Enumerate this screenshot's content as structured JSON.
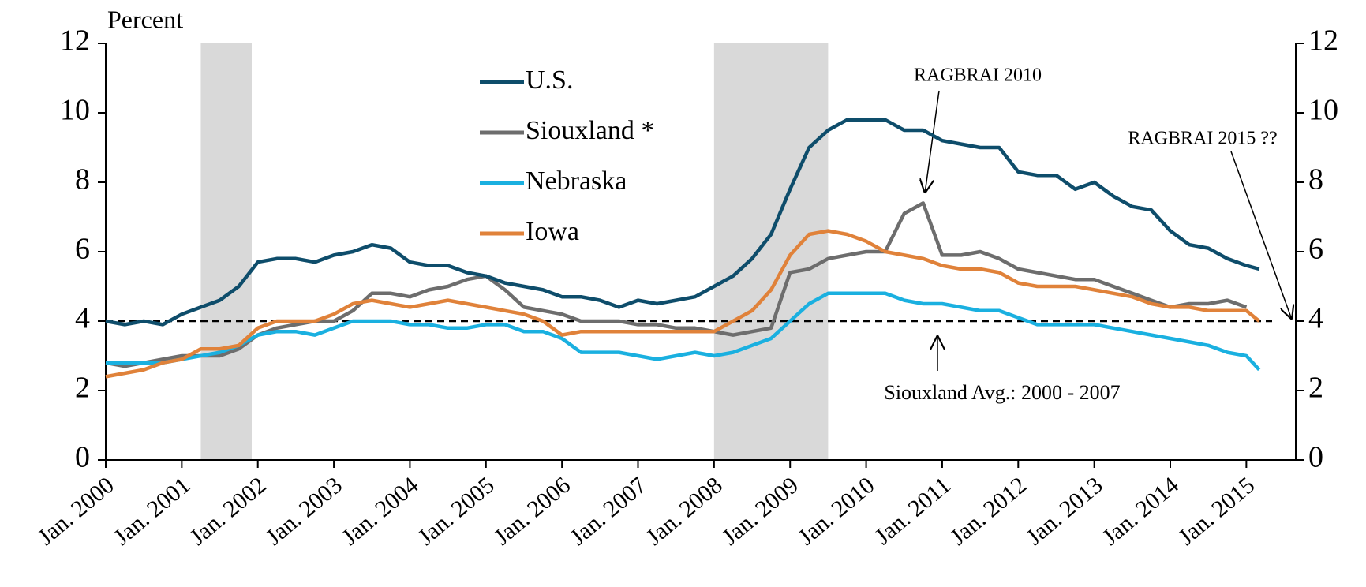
{
  "chart_data": {
    "type": "line",
    "title": "Percent",
    "x": [
      2000,
      2000.25,
      2000.5,
      2000.75,
      2001,
      2001.25,
      2001.5,
      2001.75,
      2002,
      2002.25,
      2002.5,
      2002.75,
      2003,
      2003.25,
      2003.5,
      2003.75,
      2004,
      2004.25,
      2004.5,
      2004.75,
      2005,
      2005.25,
      2005.5,
      2005.75,
      2006,
      2006.25,
      2006.5,
      2006.75,
      2007,
      2007.25,
      2007.5,
      2007.75,
      2008,
      2008.25,
      2008.5,
      2008.75,
      2009,
      2009.25,
      2009.5,
      2009.75,
      2010,
      2010.25,
      2010.5,
      2010.75,
      2011,
      2011.25,
      2011.5,
      2011.75,
      2012,
      2012.25,
      2012.5,
      2012.75,
      2013,
      2013.25,
      2013.5,
      2013.75,
      2014,
      2014.25,
      2014.5,
      2014.75,
      2015,
      2015.17
    ],
    "series": [
      {
        "name": "U.S.",
        "color": "#0e4d6b",
        "values": [
          4.0,
          3.9,
          4.0,
          3.9,
          4.2,
          4.4,
          4.6,
          5.0,
          5.7,
          5.8,
          5.8,
          5.7,
          5.9,
          6.0,
          6.2,
          6.1,
          5.7,
          5.6,
          5.6,
          5.4,
          5.3,
          5.1,
          5.0,
          4.9,
          4.7,
          4.7,
          4.6,
          4.4,
          4.6,
          4.5,
          4.6,
          4.7,
          5.0,
          5.3,
          5.8,
          6.5,
          7.8,
          9.0,
          9.5,
          9.8,
          9.8,
          9.8,
          9.5,
          9.5,
          9.2,
          9.1,
          9.0,
          9.0,
          8.3,
          8.2,
          8.2,
          7.8,
          8.0,
          7.6,
          7.3,
          7.2,
          6.6,
          6.2,
          6.1,
          5.8,
          5.6,
          5.5
        ]
      },
      {
        "name": "Siouxland *",
        "color": "#6d6d6d",
        "values": [
          2.8,
          2.7,
          2.8,
          2.9,
          3.0,
          3.0,
          3.0,
          3.2,
          3.6,
          3.8,
          3.9,
          4.0,
          4.0,
          4.3,
          4.8,
          4.8,
          4.7,
          4.9,
          5.0,
          5.2,
          5.3,
          4.9,
          4.4,
          4.3,
          4.2,
          4.0,
          4.0,
          4.0,
          3.9,
          3.9,
          3.8,
          3.8,
          3.7,
          3.6,
          3.7,
          3.8,
          5.4,
          5.5,
          5.8,
          5.9,
          6.0,
          6.0,
          7.1,
          7.4,
          5.9,
          5.9,
          6.0,
          5.8,
          5.5,
          5.4,
          5.3,
          5.2,
          5.2,
          5.0,
          4.8,
          4.6,
          4.4,
          4.5,
          4.5,
          4.6,
          4.4,
          null
        ]
      },
      {
        "name": "Nebraska",
        "color": "#1ab0e0",
        "values": [
          2.8,
          2.8,
          2.8,
          2.8,
          2.9,
          3.0,
          3.1,
          3.3,
          3.6,
          3.7,
          3.7,
          3.6,
          3.8,
          4.0,
          4.0,
          4.0,
          3.9,
          3.9,
          3.8,
          3.8,
          3.9,
          3.9,
          3.7,
          3.7,
          3.5,
          3.1,
          3.1,
          3.1,
          3.0,
          2.9,
          3.0,
          3.1,
          3.0,
          3.1,
          3.3,
          3.5,
          4.0,
          4.5,
          4.8,
          4.8,
          4.8,
          4.8,
          4.6,
          4.5,
          4.5,
          4.4,
          4.3,
          4.3,
          4.1,
          3.9,
          3.9,
          3.9,
          3.9,
          3.8,
          3.7,
          3.6,
          3.5,
          3.4,
          3.3,
          3.1,
          3.0,
          2.6
        ]
      },
      {
        "name": "Iowa",
        "color": "#e0823a",
        "values": [
          2.4,
          2.5,
          2.6,
          2.8,
          2.9,
          3.2,
          3.2,
          3.3,
          3.8,
          4.0,
          4.0,
          4.0,
          4.2,
          4.5,
          4.6,
          4.5,
          4.4,
          4.5,
          4.6,
          4.5,
          4.4,
          4.3,
          4.2,
          4.0,
          3.6,
          3.7,
          3.7,
          3.7,
          3.7,
          3.7,
          3.7,
          3.7,
          3.7,
          4.0,
          4.3,
          4.9,
          5.9,
          6.5,
          6.6,
          6.5,
          6.3,
          6.0,
          5.9,
          5.8,
          5.6,
          5.5,
          5.5,
          5.4,
          5.1,
          5.0,
          5.0,
          5.0,
          4.9,
          4.8,
          4.7,
          4.5,
          4.4,
          4.4,
          4.3,
          4.3,
          4.3,
          4.0
        ]
      }
    ],
    "xlim": [
      2000,
      2015.65
    ],
    "xticks": [
      {
        "value": 2000,
        "label": "Jan. 2000"
      },
      {
        "value": 2001,
        "label": "Jan. 2001"
      },
      {
        "value": 2002,
        "label": "Jan. 2002"
      },
      {
        "value": 2003,
        "label": "Jan. 2003"
      },
      {
        "value": 2004,
        "label": "Jan. 2004"
      },
      {
        "value": 2005,
        "label": "Jan. 2005"
      },
      {
        "value": 2006,
        "label": "Jan. 2006"
      },
      {
        "value": 2007,
        "label": "Jan. 2007"
      },
      {
        "value": 2008,
        "label": "Jan. 2008"
      },
      {
        "value": 2009,
        "label": "Jan. 2009"
      },
      {
        "value": 2010,
        "label": "Jan. 2010"
      },
      {
        "value": 2011,
        "label": "Jan. 2011"
      },
      {
        "value": 2012,
        "label": "Jan. 2012"
      },
      {
        "value": 2013,
        "label": "Jan. 2013"
      },
      {
        "value": 2014,
        "label": "Jan. 2014"
      },
      {
        "value": 2015,
        "label": "Jan. 2015"
      }
    ],
    "ylim": [
      0,
      12
    ],
    "yticks": [
      0,
      2,
      4,
      6,
      8,
      10,
      12
    ],
    "y2lim": [
      0,
      12
    ],
    "y2ticks": [
      0,
      2,
      4,
      6,
      8,
      10,
      12
    ],
    "recessions": [
      [
        2001.25,
        2001.92
      ],
      [
        2008.0,
        2009.5
      ]
    ],
    "recession_color": "#d9d9d9",
    "reference_line": {
      "value": 4,
      "label": "Siouxland Avg.: 2000 - 2007"
    },
    "annotations": [
      "RAGBRAI 2010",
      "RAGBRAI 2015 ??"
    ]
  }
}
